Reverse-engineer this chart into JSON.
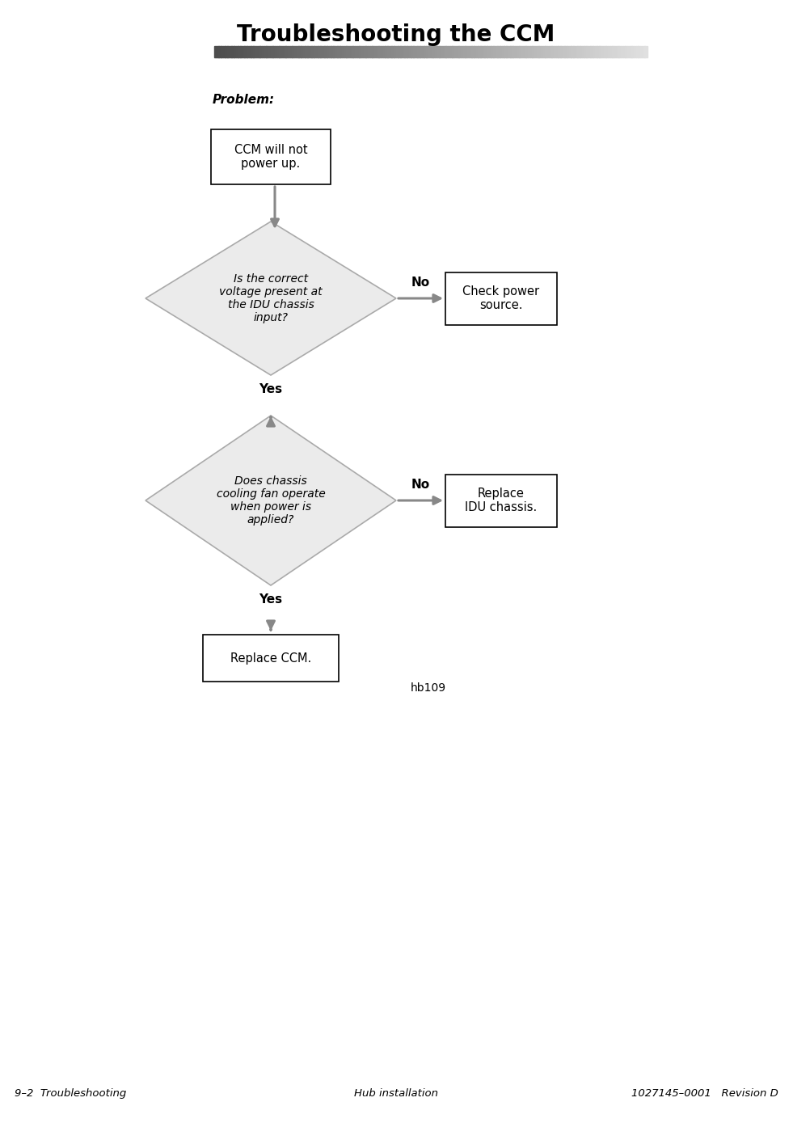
{
  "title": "Troubleshooting the CCM",
  "footer_left": "9–2  Troubleshooting",
  "footer_center": "Hub installation",
  "footer_right": "1027145–0001   Revision D",
  "problem_label": "Problem:",
  "box1_text": "CCM will not\npower up.",
  "diamond1_text": "Is the correct\nvoltage present at\nthe IDU chassis\ninput?",
  "box2_text": "Check power\nsource.",
  "diamond2_text": "Does chassis\ncooling fan operate\nwhen power is\napplied?",
  "box3_text": "Replace\nIDU chassis.",
  "box4_text": "Replace CCM.",
  "yes1_label": "Yes",
  "no1_label": "No",
  "yes2_label": "Yes",
  "no2_label": "No",
  "fig_id": "hb109",
  "bg_color": "#ffffff",
  "box_fill": "#ffffff",
  "box_edge": "#000000",
  "diamond_fill": "#ebebeb",
  "diamond_edge": "#aaaaaa",
  "arrow_color": "#888888",
  "text_color": "#000000"
}
